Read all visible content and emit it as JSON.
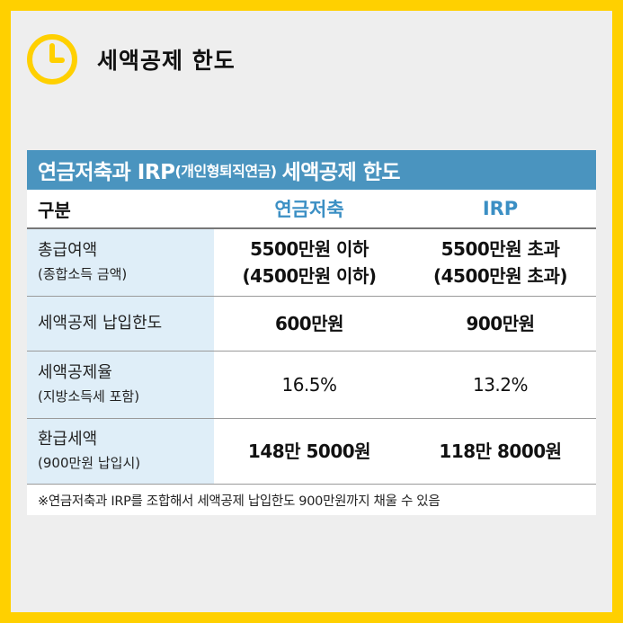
{
  "header": {
    "title": "세액공제 한도",
    "icon": "clock-icon",
    "accent": "#ffd000"
  },
  "card": {
    "title_main": "연금저축과 IRP",
    "title_paren": "(개인형퇴직연금)",
    "title_end": "세액공제 한도",
    "title_bg": "#4a94bf",
    "columns": [
      "구분",
      "연금저축",
      "IRP"
    ],
    "rows": [
      {
        "label": "총급여액",
        "sublabel": "(종합소득 금액)",
        "values": [
          [
            "5500만원 이하",
            "(4500만원 이하)"
          ],
          [
            "5500만원 초과",
            "(4500만원 초과)"
          ]
        ]
      },
      {
        "label": "세액공제 납입한도",
        "values": [
          "600만원",
          "900만원"
        ]
      },
      {
        "label": "세액공제율",
        "sublabel": "(지방소득세 포함)",
        "values": [
          "16.5%",
          "13.2%"
        ]
      },
      {
        "label": "환급세액",
        "sublabel": "(900만원 납입시)",
        "values": [
          "148만 5000원",
          "118만 8000원"
        ]
      }
    ],
    "note": "※연금저축과 IRP를 조합해서 세액공제 납입한도 900만원까지 채울 수 있음"
  }
}
